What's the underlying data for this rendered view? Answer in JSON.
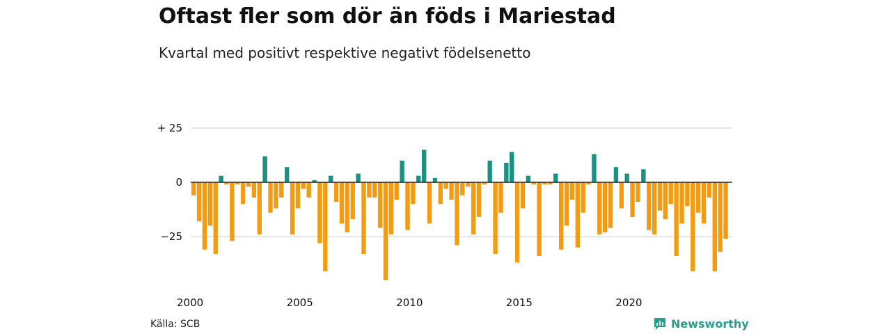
{
  "title": "Oftast fler som dör än föds i Mariestad",
  "subtitle": "Kvartal med positivt respektive negativt födelsenetto",
  "source": "Källa: SCB",
  "brand": {
    "name": "Newsworthy",
    "color": "#2a9d8f"
  },
  "chart_data": {
    "type": "bar",
    "ylim": [
      -46,
      25
    ],
    "yticks": [
      {
        "value": 25,
        "label": "+ 25"
      },
      {
        "value": 0,
        "label": "0"
      },
      {
        "value": -25,
        "label": "−25"
      }
    ],
    "xticks": [
      {
        "year": 2000,
        "label": "2000"
      },
      {
        "year": 2005,
        "label": "2005"
      },
      {
        "year": 2010,
        "label": "2010"
      },
      {
        "year": 2015,
        "label": "2015"
      },
      {
        "year": 2020,
        "label": "2020"
      }
    ],
    "start": "2000-Q1",
    "colors": {
      "positive": "#1a9281",
      "negative": "#f39c12"
    },
    "grid": true,
    "values": [
      -6,
      -18,
      -31,
      -20,
      -33,
      3,
      -1,
      -27,
      -1,
      -10,
      -2,
      -7,
      -24,
      12,
      -14,
      -12,
      -7,
      7,
      -24,
      -12,
      -3,
      -7,
      1,
      -28,
      -41,
      3,
      -9,
      -19,
      -23,
      -17,
      4,
      -33,
      -7,
      -7,
      -21,
      -45,
      -24,
      -8,
      10,
      -22,
      -10,
      3,
      15,
      -19,
      2,
      -10,
      -3,
      -8,
      -29,
      -6,
      -2,
      -24,
      -16,
      -1,
      10,
      -33,
      -14,
      9,
      14,
      -37,
      -12,
      3,
      -1,
      -34,
      -1,
      -1,
      4,
      -31,
      -20,
      -8,
      -30,
      -14,
      -1,
      13,
      -24,
      -23,
      -21,
      7,
      -12,
      4,
      -16,
      -9,
      6,
      -22,
      -24,
      -13,
      -17,
      -10,
      -34,
      -19,
      -11,
      -41,
      -14,
      -19,
      -7,
      -41,
      -32,
      -26
    ]
  }
}
